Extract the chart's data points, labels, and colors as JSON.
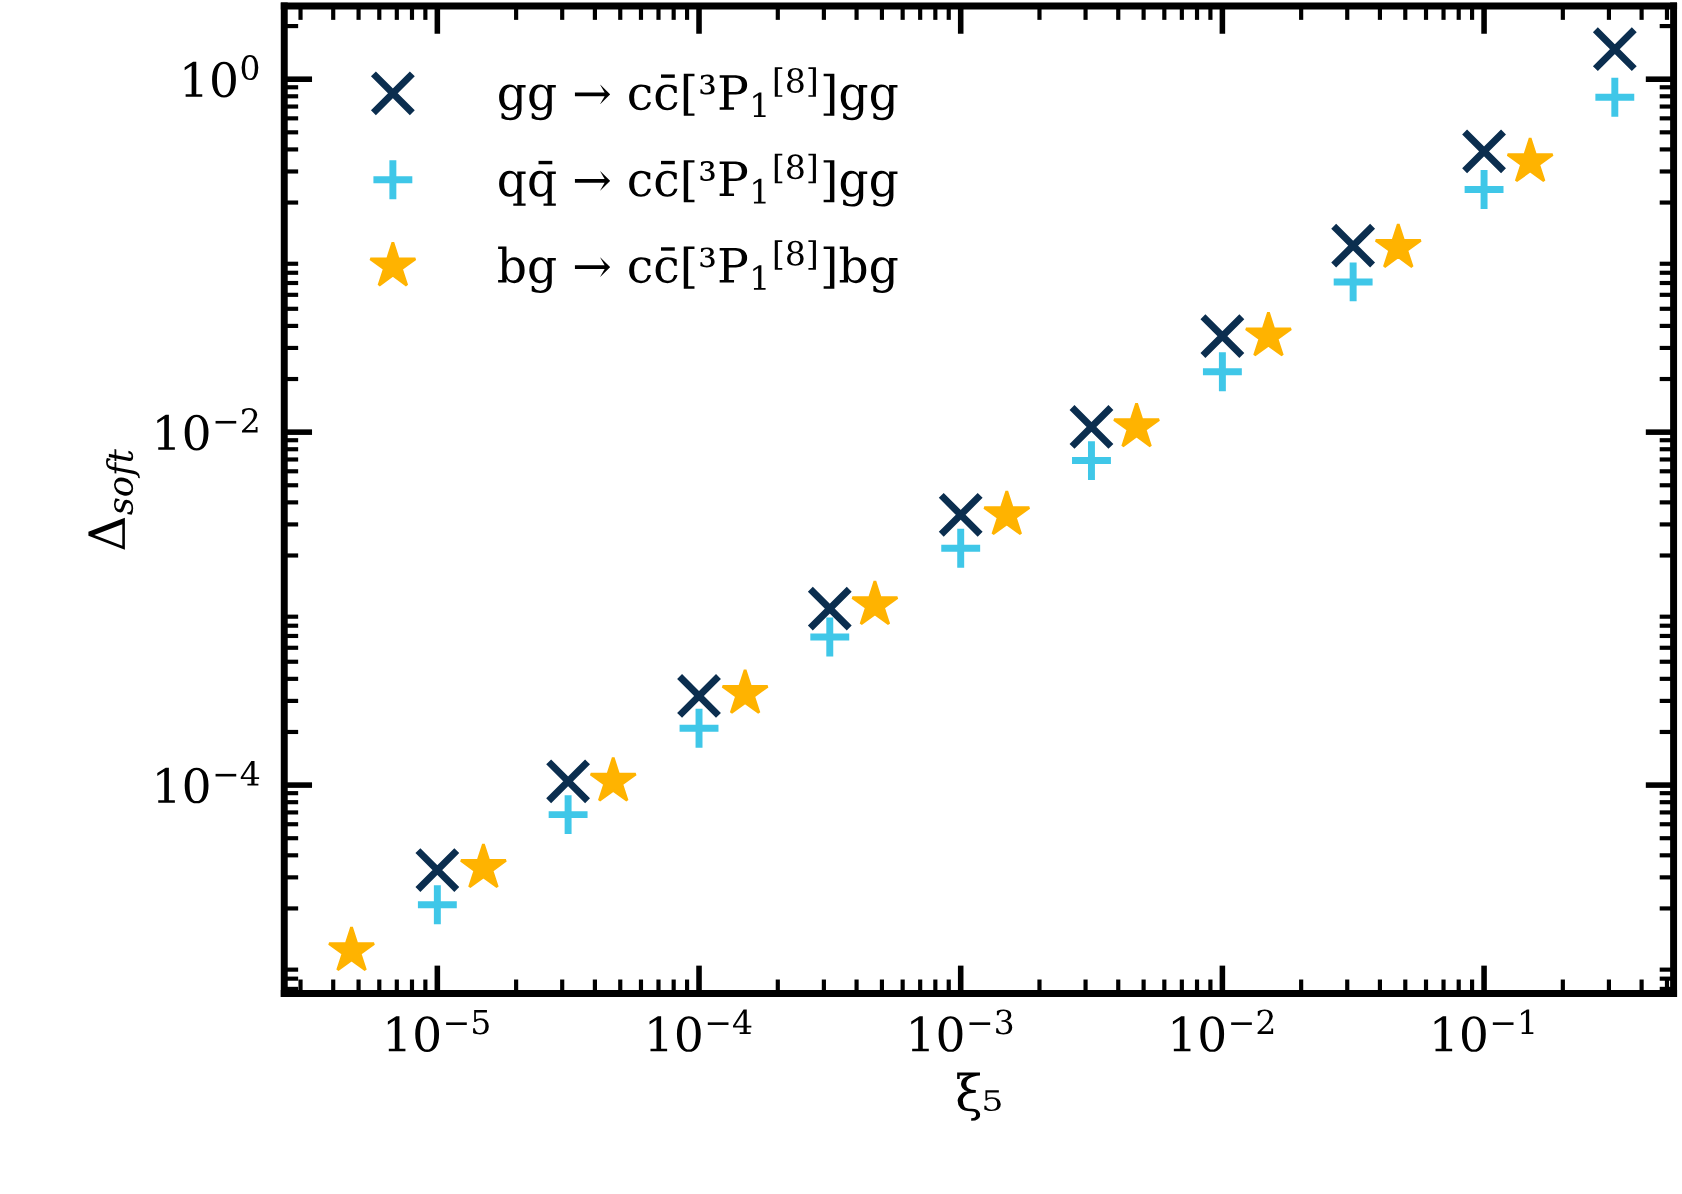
{
  "chart_data": {
    "type": "scatter",
    "xlabel": "ξ₅",
    "ylabel": "Δ$_{soft}$",
    "log": "xy",
    "legend": "top left",
    "xlim": [
      2.6e-06,
      0.53
    ],
    "ylim": [
      6.6e-06,
      2.6
    ],
    "xticks": [
      {
        "value": 1e-05,
        "label": "10$^{−5}$"
      },
      {
        "value": 0.0001,
        "label": "10$^{−4}$"
      },
      {
        "value": 0.001,
        "label": "10$^{−3}$"
      },
      {
        "value": 0.01,
        "label": "10$^{−2}$"
      },
      {
        "value": 0.1,
        "label": "10$^{−1}$"
      }
    ],
    "yticks": [
      {
        "value": 0.0001,
        "label": "10$^{−4}$"
      },
      {
        "value": 0.01,
        "label": "10$^{−2}$"
      },
      {
        "value": 1,
        "label": "10$^{0}$"
      }
    ],
    "series": [
      {
        "name": "gg → cc̄[³P$_{1}$$^{[8]}$]gg",
        "color": "#0b2e4f",
        "marker": "cross",
        "x": [
          1e-05,
          3.16e-05,
          0.0001,
          0.000316,
          0.001,
          0.00316,
          0.01,
          0.0316,
          0.1,
          0.316
        ],
        "values": [
          3.3e-05,
          0.000105,
          0.00032,
          0.001,
          0.0034,
          0.0107,
          0.035,
          0.114,
          0.39,
          1.48
        ]
      },
      {
        "name": "qq̄ → cc̄[³P$_{1}$$^{[8]}$]gg",
        "color": "#3fc7e8",
        "marker": "plus",
        "x": [
          1e-05,
          3.16e-05,
          0.0001,
          0.000316,
          0.001,
          0.00316,
          0.01,
          0.0316,
          0.1,
          0.316
        ],
        "values": [
          2.1e-05,
          6.8e-05,
          0.00021,
          0.00069,
          0.0022,
          0.0069,
          0.022,
          0.071,
          0.237,
          0.79
        ]
      },
      {
        "name": "bg → cc̄[³P$_{1}$$^{[8]}$]bg",
        "color": "#ffb300",
        "marker": "star",
        "x": [
          4.7e-06,
          1.5e-05,
          4.7e-05,
          0.00015,
          0.00047,
          0.0015,
          0.0047,
          0.015,
          0.047,
          0.15
        ],
        "values": [
          1.15e-05,
          3.4e-05,
          0.000105,
          0.00033,
          0.00105,
          0.0034,
          0.0107,
          0.035,
          0.111,
          0.34
        ]
      }
    ]
  }
}
